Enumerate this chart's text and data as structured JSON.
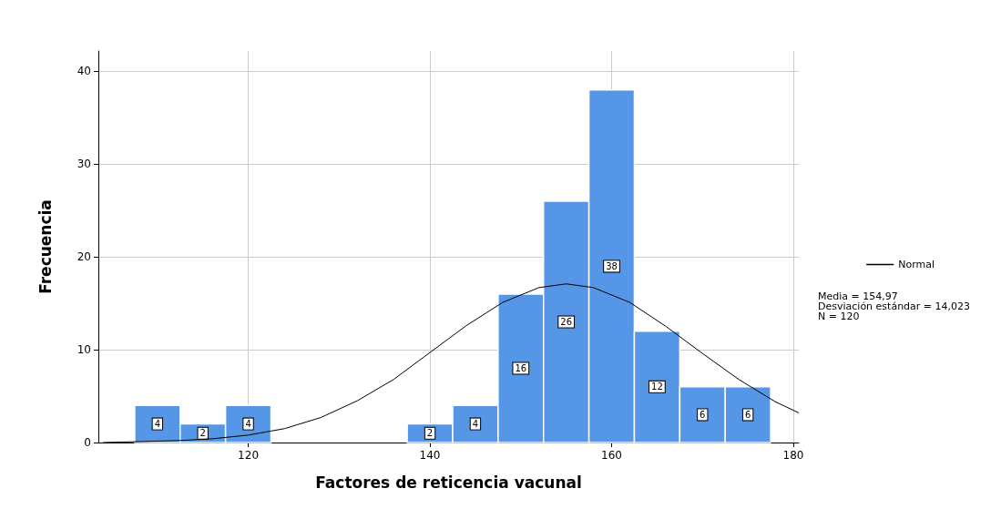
{
  "chart_data": {
    "type": "histogram",
    "xlabel": "Factores de reticencia vacunal",
    "ylabel": "Frecuencia",
    "bins": [
      107.5,
      112.5,
      117.5,
      122.5,
      127.5,
      132.5,
      137.5,
      142.5,
      147.5,
      152.5,
      157.5,
      162.5,
      167.5,
      172.5,
      177.5
    ],
    "values": [
      4,
      2,
      4,
      0,
      0,
      0,
      2,
      4,
      16,
      26,
      38,
      12,
      6,
      6
    ],
    "value_labels": [
      "4",
      "2",
      "4",
      null,
      null,
      null,
      "2",
      "4",
      "16",
      "26",
      "38",
      "12",
      "6",
      "6"
    ],
    "color": "#5596e6",
    "series": [
      {
        "type": "line",
        "name": "Normal",
        "color": "#000000",
        "x": [
          104,
          108,
          112,
          116,
          120,
          124,
          128,
          132,
          136,
          140,
          144,
          148,
          152,
          155,
          158,
          162,
          166,
          170,
          174,
          178,
          180.6
        ],
        "values": [
          0.0,
          0.1,
          0.2,
          0.4,
          0.8,
          1.5,
          2.7,
          4.5,
          6.8,
          9.7,
          12.6,
          15.1,
          16.7,
          17.1,
          16.7,
          15.1,
          12.5,
          9.6,
          6.8,
          4.4,
          3.2
        ]
      }
    ],
    "xlim": [
      103.5,
      180.6
    ],
    "xticks": [
      120,
      140,
      160,
      180
    ],
    "ylim": [
      0,
      42.2
    ],
    "yticks": [
      0,
      10,
      20,
      30,
      40
    ],
    "grid": true,
    "legend": "right",
    "annotations": [
      "Media = 154,97",
      "Desviación estándar = 14,023",
      "N = 120"
    ]
  }
}
